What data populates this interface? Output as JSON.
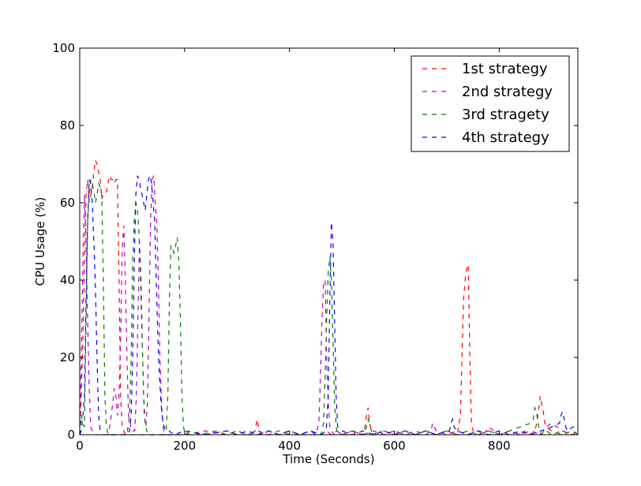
{
  "chart_data": {
    "type": "line",
    "title": "",
    "xlabel": "Time (Seconds)",
    "ylabel": "CPU Usage (%)",
    "xlim": [
      0,
      950
    ],
    "ylim": [
      0,
      100
    ],
    "xticks": [
      0,
      200,
      400,
      600,
      800
    ],
    "yticks": [
      0,
      20,
      40,
      60,
      80,
      100
    ],
    "grid": false,
    "legend_position": "top-right",
    "line_style": "dashed",
    "series": [
      {
        "name": "1st strategy",
        "color": "#ff0000",
        "x": [
          0,
          3,
          6,
          9,
          12,
          15,
          18,
          21,
          24,
          27,
          30,
          33,
          36,
          39,
          42,
          45,
          48,
          51,
          54,
          57,
          60,
          63,
          66,
          69,
          72,
          75,
          78,
          81,
          84,
          87,
          90,
          100,
          110,
          120,
          130,
          140,
          150,
          160,
          170,
          180,
          200,
          240,
          280,
          300,
          320,
          335,
          338,
          341,
          344,
          350,
          360,
          380,
          400,
          420,
          440,
          460,
          470,
          480,
          490,
          500,
          510,
          520,
          530,
          540,
          544,
          547,
          550,
          553,
          556,
          560,
          570,
          580,
          600,
          620,
          640,
          660,
          680,
          700,
          720,
          726,
          729,
          732,
          735,
          738,
          741,
          744,
          747,
          750,
          760,
          780,
          800,
          820,
          840,
          850,
          860,
          870,
          875,
          878,
          881,
          884,
          887,
          890,
          900,
          920,
          940,
          950
        ],
        "y": [
          0,
          10,
          25,
          45,
          62,
          66,
          60,
          62,
          64,
          68,
          71,
          70,
          68,
          66,
          61,
          62,
          62,
          63,
          65,
          67,
          66,
          66,
          65,
          66,
          66,
          40,
          10,
          2,
          1,
          0,
          0,
          0,
          0,
          0,
          0,
          0,
          0,
          0,
          0,
          0,
          0,
          0,
          1,
          0,
          0,
          1,
          4,
          2,
          0,
          0,
          1,
          0,
          1,
          0,
          0,
          0,
          1,
          0,
          1,
          0,
          0,
          1,
          0,
          0,
          2,
          5,
          7,
          3,
          1,
          0,
          1,
          0,
          1,
          0,
          0,
          1,
          0,
          1,
          0,
          5,
          20,
          35,
          40,
          43,
          44,
          20,
          3,
          1,
          0,
          1,
          0,
          1,
          0,
          1,
          0,
          2,
          6,
          10,
          8,
          6,
          3,
          2,
          1,
          0,
          1,
          0
        ]
      },
      {
        "name": "2nd strategy",
        "color": "#bf00bf",
        "x": [
          0,
          3,
          6,
          9,
          12,
          15,
          18,
          21,
          24,
          27,
          30,
          36,
          42,
          48,
          54,
          57,
          60,
          63,
          66,
          69,
          72,
          75,
          78,
          81,
          84,
          87,
          90,
          93,
          96,
          99,
          102,
          105,
          108,
          111,
          114,
          117,
          120,
          123,
          126,
          129,
          132,
          135,
          138,
          141,
          144,
          147,
          150,
          153,
          156,
          159,
          162,
          170,
          180,
          200,
          240,
          280,
          300,
          320,
          340,
          360,
          380,
          400,
          420,
          440,
          450,
          456,
          459,
          462,
          465,
          468,
          471,
          474,
          477,
          480,
          485,
          490,
          500,
          520,
          540,
          560,
          580,
          600,
          620,
          640,
          660,
          670,
          673,
          676,
          680,
          700,
          720,
          740,
          760,
          770,
          775,
          780,
          790,
          800,
          820,
          840,
          860,
          880,
          890,
          900,
          920,
          940,
          950
        ],
        "y": [
          2,
          20,
          45,
          62,
          50,
          30,
          12,
          2,
          1,
          0,
          0,
          0,
          0,
          0,
          0,
          2,
          5,
          8,
          12,
          10,
          5,
          10,
          25,
          48,
          54,
          40,
          20,
          5,
          3,
          1,
          1,
          1,
          10,
          30,
          50,
          40,
          20,
          5,
          2,
          8,
          30,
          55,
          66,
          67,
          60,
          55,
          40,
          20,
          8,
          2,
          0,
          0,
          0,
          0,
          1,
          0,
          1,
          0,
          1,
          0,
          1,
          0,
          0,
          1,
          0,
          3,
          15,
          30,
          39,
          40,
          20,
          8,
          2,
          1,
          0,
          1,
          0,
          1,
          0,
          1,
          0,
          1,
          0,
          1,
          0,
          1,
          3,
          2,
          1,
          0,
          1,
          0,
          1,
          0,
          1,
          2,
          1,
          0,
          1,
          0,
          1,
          0,
          2,
          3,
          1,
          0,
          1
        ]
      },
      {
        "name": "3rd stragety",
        "color": "#007f00",
        "x": [
          0,
          3,
          6,
          9,
          12,
          15,
          18,
          21,
          24,
          27,
          30,
          33,
          36,
          39,
          42,
          45,
          48,
          51,
          54,
          57,
          60,
          70,
          80,
          90,
          95,
          98,
          101,
          104,
          107,
          110,
          113,
          116,
          119,
          122,
          125,
          128,
          131,
          134,
          140,
          150,
          160,
          165,
          168,
          171,
          174,
          177,
          180,
          183,
          186,
          189,
          192,
          195,
          198,
          201,
          210,
          230,
          260,
          280,
          300,
          320,
          340,
          360,
          380,
          400,
          420,
          440,
          460,
          465,
          468,
          471,
          474,
          477,
          480,
          483,
          486,
          490,
          500,
          520,
          540,
          547,
          550,
          553,
          556,
          560,
          580,
          600,
          620,
          640,
          660,
          680,
          700,
          720,
          740,
          760,
          780,
          800,
          820,
          840,
          860,
          865,
          868,
          871,
          874,
          877,
          880,
          890,
          900,
          920,
          940,
          950
        ],
        "y": [
          0,
          5,
          3,
          2,
          30,
          55,
          62,
          66,
          65,
          63,
          60,
          62,
          65,
          64,
          62,
          40,
          10,
          2,
          0,
          0,
          0,
          0,
          0,
          0,
          5,
          20,
          45,
          55,
          60,
          58,
          52,
          40,
          25,
          10,
          3,
          1,
          0,
          0,
          0,
          0,
          0,
          1,
          10,
          35,
          49,
          48,
          47,
          49,
          51,
          45,
          30,
          10,
          2,
          0,
          1,
          0,
          1,
          0,
          1,
          0,
          0,
          1,
          0,
          1,
          0,
          1,
          0,
          3,
          15,
          30,
          42,
          46,
          40,
          25,
          8,
          1,
          0,
          1,
          0,
          2,
          4,
          3,
          1,
          0,
          1,
          0,
          1,
          0,
          1,
          0,
          1,
          0,
          1,
          0,
          1,
          0,
          1,
          2,
          3,
          4,
          7,
          6,
          3,
          1,
          0,
          1,
          0,
          1,
          0,
          1
        ]
      },
      {
        "name": "4th strategy",
        "color": "#0000ff",
        "x": [
          0,
          3,
          6,
          9,
          12,
          15,
          18,
          21,
          24,
          27,
          30,
          33,
          36,
          39,
          42,
          50,
          60,
          80,
          90,
          95,
          98,
          101,
          104,
          107,
          110,
          113,
          116,
          119,
          122,
          125,
          128,
          131,
          134,
          137,
          140,
          143,
          146,
          149,
          152,
          155,
          158,
          161,
          165,
          170,
          180,
          200,
          240,
          280,
          300,
          320,
          340,
          360,
          380,
          400,
          420,
          440,
          460,
          470,
          474,
          477,
          480,
          483,
          486,
          489,
          492,
          500,
          520,
          540,
          560,
          580,
          600,
          620,
          640,
          660,
          680,
          700,
          705,
          708,
          711,
          714,
          720,
          740,
          760,
          780,
          800,
          820,
          840,
          860,
          880,
          900,
          915,
          918,
          921,
          924,
          927,
          930,
          940,
          950
        ],
        "y": [
          0,
          1,
          5,
          10,
          35,
          55,
          66,
          65,
          60,
          50,
          38,
          20,
          5,
          1,
          0,
          0,
          0,
          0,
          0,
          1,
          5,
          20,
          45,
          62,
          67,
          66,
          64,
          62,
          60,
          58,
          62,
          66,
          67,
          65,
          60,
          55,
          40,
          25,
          15,
          8,
          4,
          2,
          1,
          1,
          0,
          1,
          0,
          1,
          0,
          1,
          0,
          1,
          0,
          1,
          0,
          1,
          0,
          1,
          10,
          35,
          55,
          50,
          30,
          10,
          2,
          1,
          0,
          1,
          0,
          1,
          0,
          1,
          0,
          1,
          0,
          1,
          1,
          3,
          4,
          2,
          1,
          0,
          1,
          0,
          1,
          0,
          1,
          0,
          1,
          2,
          3,
          5,
          6,
          4,
          2,
          1,
          2,
          2
        ]
      }
    ]
  }
}
